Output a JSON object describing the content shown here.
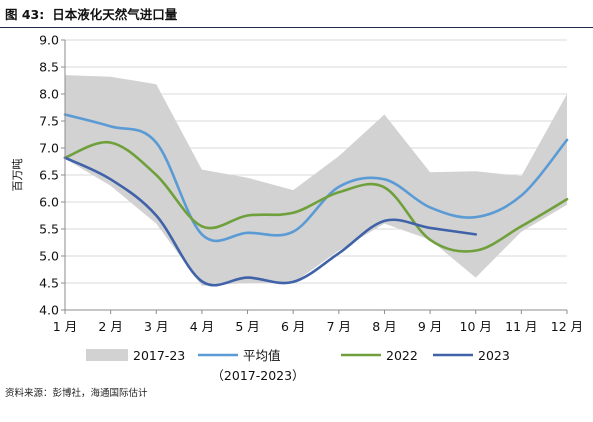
{
  "figure": {
    "label": "图 43:",
    "title": "日本液化天然气进口量"
  },
  "source": "资料来源：彭博社，海通国际估计",
  "chart_data": {
    "type": "line",
    "title": "日本液化天然气进口量",
    "ylabel": "百万吨",
    "xlabel": "",
    "ylim": [
      4.0,
      9.0
    ],
    "yticks": [
      "4.0",
      "4.5",
      "5.0",
      "5.5",
      "6.0",
      "6.5",
      "7.0",
      "7.5",
      "8.0",
      "8.5",
      "9.0"
    ],
    "categories": [
      "1 月",
      "2 月",
      "3 月",
      "4 月",
      "5 月",
      "6 月",
      "7 月",
      "8 月",
      "9 月",
      "10 月",
      "11 月",
      "12 月"
    ],
    "grid": "horizontal",
    "legend": "bottom",
    "band": {
      "name": "2017-23",
      "upper": [
        8.35,
        8.32,
        8.18,
        6.6,
        6.45,
        6.22,
        6.85,
        7.62,
        6.55,
        6.57,
        6.48,
        8.0
      ],
      "lower": [
        6.8,
        6.3,
        5.6,
        4.45,
        4.5,
        4.5,
        5.1,
        5.6,
        5.3,
        4.6,
        5.45,
        5.95
      ],
      "color": "#d2d2d2"
    },
    "series": [
      {
        "name": "平均值",
        "name_line2": "（2017-2023）",
        "color": "#5b9bd5",
        "values": [
          7.62,
          7.4,
          7.1,
          5.4,
          5.43,
          5.45,
          6.28,
          6.42,
          5.9,
          5.72,
          6.12,
          7.15
        ]
      },
      {
        "name": "2022",
        "color": "#70a03c",
        "values": [
          6.82,
          7.1,
          6.5,
          5.55,
          5.75,
          5.8,
          6.18,
          6.27,
          5.3,
          5.1,
          5.55,
          6.05
        ]
      },
      {
        "name": "2023",
        "color": "#3f62a8",
        "values": [
          6.82,
          6.42,
          5.75,
          4.53,
          4.6,
          4.52,
          5.05,
          5.65,
          5.52,
          5.4,
          null,
          null
        ]
      }
    ]
  }
}
